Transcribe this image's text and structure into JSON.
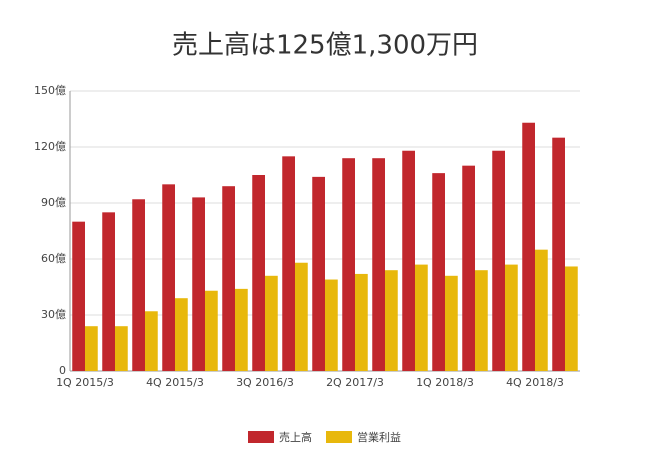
{
  "chart_data": {
    "type": "bar",
    "title": "売上高は125億1,300万円",
    "categories": [
      "1Q 2015/3",
      null,
      null,
      "4Q 2015/3",
      null,
      null,
      "3Q 2016/3",
      null,
      null,
      "2Q 2017/3",
      null,
      null,
      "1Q 2018/3",
      null,
      null,
      "4Q 2018/3",
      null
    ],
    "series": [
      {
        "name": "売上高",
        "color": "#c1272d",
        "values": [
          80,
          85,
          92,
          100,
          93,
          99,
          105,
          115,
          104,
          114,
          114,
          118,
          106,
          110,
          118,
          133,
          125
        ]
      },
      {
        "name": "営業利益",
        "color": "#e8b80c",
        "values": [
          24,
          24,
          32,
          39,
          43,
          44,
          51,
          58,
          49,
          52,
          54,
          57,
          51,
          54,
          57,
          65,
          56
        ]
      }
    ],
    "ylim": [
      0,
      150
    ],
    "yticks": [
      0,
      {
        "value": 30,
        "label": "30億"
      },
      {
        "value": 60,
        "label": "60億"
      },
      {
        "value": 90,
        "label": "90億"
      },
      {
        "value": 120,
        "label": "120億"
      },
      {
        "value": 150,
        "label": "150億"
      }
    ],
    "grid": true,
    "legend": "bottom"
  }
}
